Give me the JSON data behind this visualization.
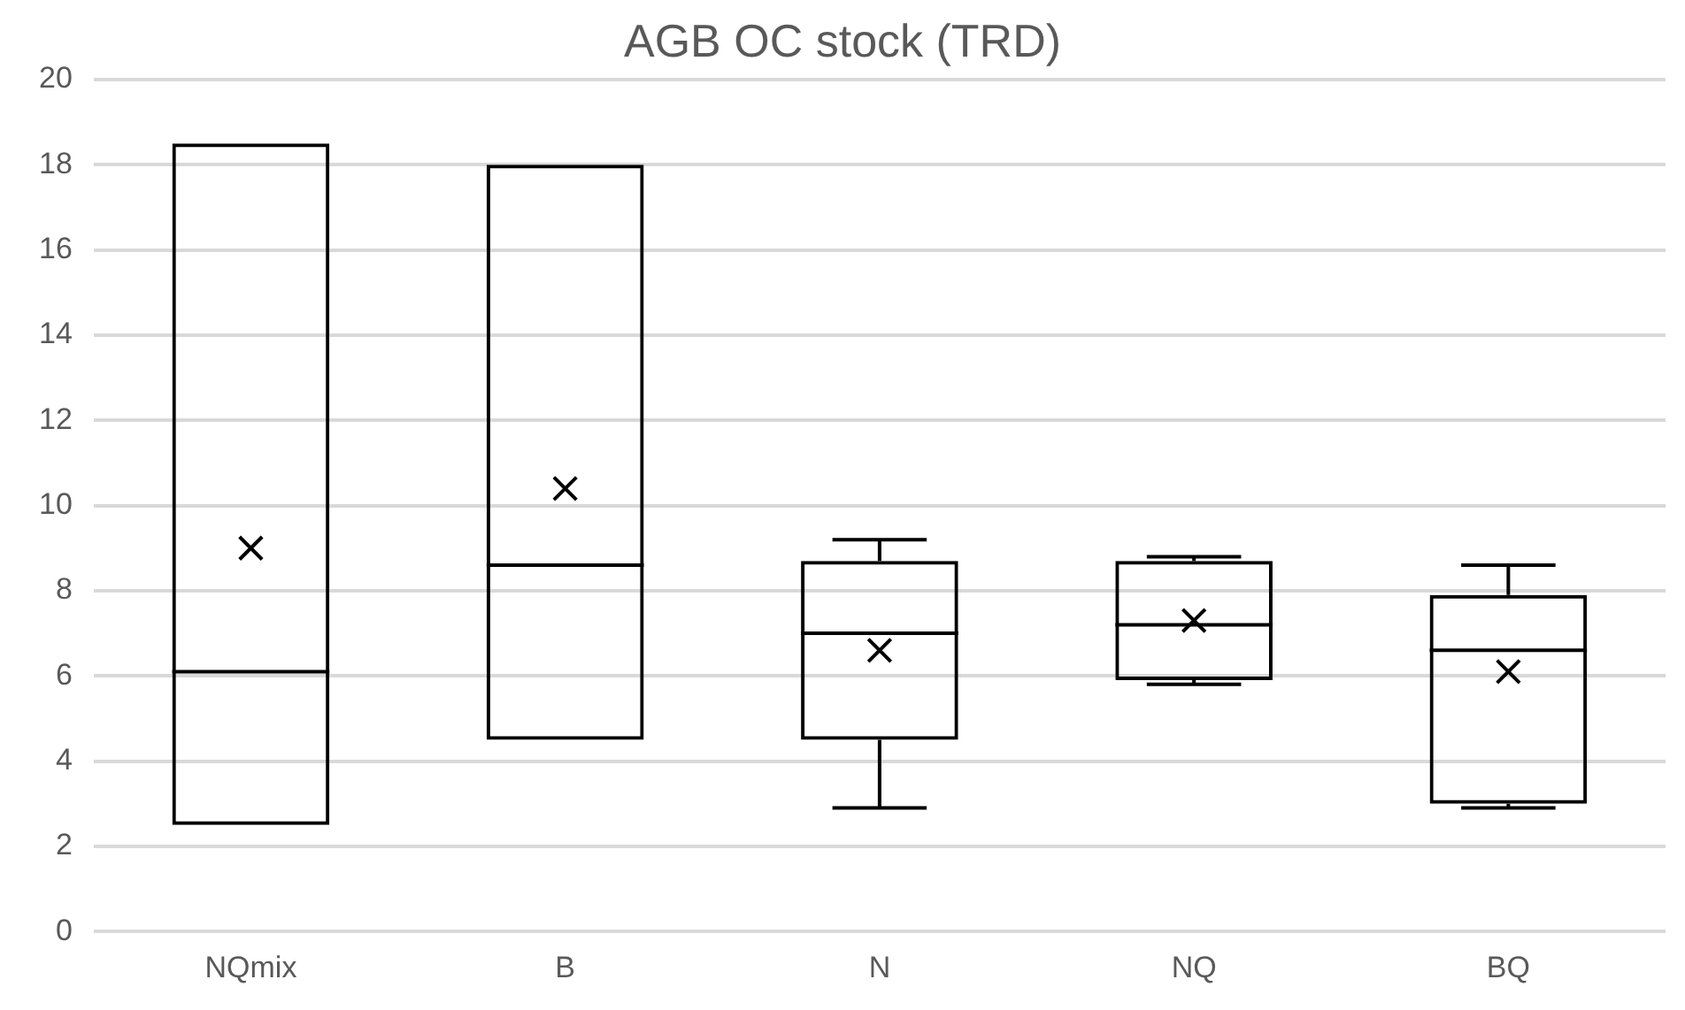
{
  "chart_data": {
    "type": "box",
    "title": "AGB OC stock (TRD)",
    "categories": [
      "NQmix",
      "B",
      "N",
      "NQ",
      "BQ"
    ],
    "boxes": [
      {
        "low": 2.5,
        "q1": 2.5,
        "median": 6.1,
        "q3": 18.5,
        "high": 18.5,
        "mean": 9.0
      },
      {
        "low": 4.5,
        "q1": 4.5,
        "median": 8.6,
        "q3": 18.0,
        "high": 18.0,
        "mean": 10.4
      },
      {
        "low": 2.9,
        "q1": 4.5,
        "median": 7.0,
        "q3": 8.7,
        "high": 9.2,
        "mean": 6.6
      },
      {
        "low": 5.8,
        "q1": 5.9,
        "median": 7.2,
        "q3": 8.7,
        "high": 8.8,
        "mean": 7.3
      },
      {
        "low": 2.9,
        "q1": 3.0,
        "median": 6.6,
        "q3": 7.9,
        "high": 8.6,
        "mean": 6.1
      }
    ],
    "color": "#000000",
    "ylim": [
      0,
      20
    ],
    "yticks": [
      0,
      2,
      4,
      6,
      8,
      10,
      12,
      14,
      16,
      18,
      20
    ],
    "grid": "y",
    "legend": false
  }
}
